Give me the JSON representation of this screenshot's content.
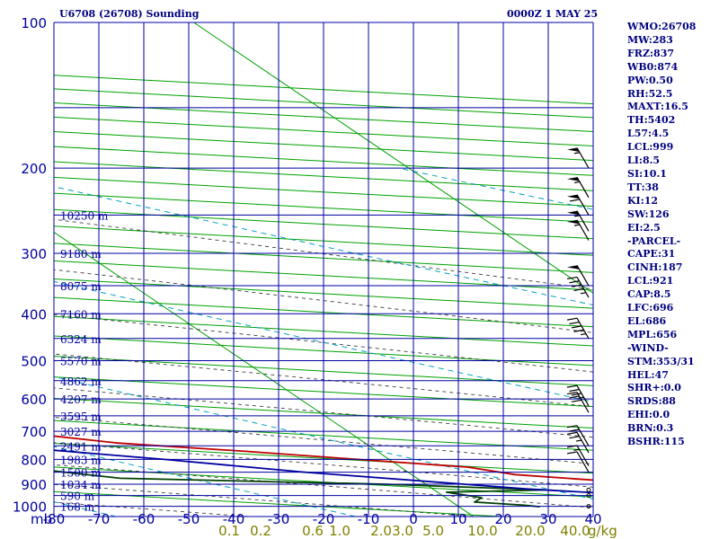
{
  "header": {
    "station": "U6708 (26708) Sounding",
    "time": "0000Z  1 MAY 25"
  },
  "indices": [
    "WMO:26708",
    "MW:283",
    "FRZ:837",
    "WB0:874",
    "PW:0.50",
    "RH:52.5",
    "MAXT:16.5",
    "TH:5402",
    "L57:4.5",
    "LCL:999",
    "LI:8.5",
    "SI:10.1",
    "TT:38",
    "KI:12",
    "SW:126",
    "EI:2.5",
    "-PARCEL-",
    "CAPE:31",
    "CINH:187",
    "LCL:921",
    "CAP:8.5",
    "LFC:696",
    "EL:686",
    "MPL:656",
    "-WIND-",
    "STM:353/31",
    "HEL:47",
    "SHR+:0.0",
    "SRDS:88",
    "EHI:0.0",
    "BRN:0.3",
    "BSHR:115"
  ],
  "chart_data": {
    "type": "line",
    "chart_kind": "skew-T log-P sounding diagram",
    "y_scale": "log",
    "ylim": [
      1050,
      100
    ],
    "xlim": [
      -80,
      0
    ],
    "pressure_labels": [
      "100",
      "200",
      "300",
      "400",
      "500",
      "600",
      "700",
      "800",
      "900",
      "1000"
    ],
    "pressure_values": [
      100,
      200,
      300,
      400,
      500,
      600,
      700,
      800,
      900,
      1000
    ],
    "x_axis_unit": "mb",
    "temperature_ticks": [
      "-80",
      "-70",
      "-60",
      "-50",
      "-40",
      "-30",
      "-20",
      "-10",
      "0",
      "10",
      "20",
      "30",
      "40"
    ],
    "mixing_ratio_labels": [
      "0.1",
      "0.2",
      "0.6",
      "1.0",
      "2.0",
      "3.0",
      "5.0",
      "10.0",
      "20.0",
      "40.0"
    ],
    "mixing_ratio_unit": "g/kg",
    "height_labels": [
      "10250 m",
      "9180 m",
      "8075 m",
      "7160 m",
      "6324 m",
      "5570 m",
      "4862 m",
      "4207 m",
      "3595 m",
      "3027 m",
      "2491 m",
      "1983 m",
      "1500 m",
      "1034 m",
      "590 m",
      "168 m"
    ],
    "height_pressures": [
      250,
      300,
      350,
      400,
      450,
      500,
      550,
      600,
      650,
      700,
      750,
      800,
      850,
      900,
      950,
      1000
    ],
    "series": [
      {
        "name": "",
        "role": "temperature",
        "color": "#c00000",
        "points": [
          [
            1002,
            5.5
          ],
          [
            995,
            5.6
          ],
          [
            980,
            7.5
          ],
          [
            960,
            9.0
          ],
          [
            925,
            7.8
          ],
          [
            900,
            5.0
          ],
          [
            860,
            2.3
          ],
          [
            830,
            1.5
          ],
          [
            800,
            -0.7
          ],
          [
            770,
            -2.9
          ],
          [
            740,
            -5.5
          ],
          [
            700,
            -7.5
          ],
          [
            672,
            -8.0
          ],
          [
            650,
            -8.8
          ],
          [
            600,
            -13.1
          ],
          [
            570,
            -15.3
          ],
          [
            550,
            -17.2
          ],
          [
            510,
            -20.8
          ],
          [
            500,
            -21.8
          ],
          [
            470,
            -26.0
          ],
          [
            430,
            -29.5
          ],
          [
            400,
            -33.0
          ],
          [
            350,
            -40.5
          ],
          [
            300,
            -48.0
          ],
          [
            250,
            -57.0
          ],
          [
            230,
            -56.5
          ],
          [
            220,
            -54.5
          ]
        ]
      },
      {
        "name": "",
        "role": "dewpoint",
        "color": "#004000",
        "points": [
          [
            1002,
            1.8
          ],
          [
            995,
            1.5
          ],
          [
            980,
            0.5
          ],
          [
            960,
            0.8
          ],
          [
            935,
            0.2
          ],
          [
            925,
            2.5
          ],
          [
            900,
            -1.0
          ],
          [
            875,
            -6.6
          ],
          [
            830,
            -8.5
          ],
          [
            800,
            -10.5
          ],
          [
            770,
            -12.5
          ],
          [
            740,
            -14.0
          ],
          [
            700,
            -15.3
          ],
          [
            680,
            -15.0
          ],
          [
            650,
            -19.4
          ],
          [
            600,
            -25.6
          ],
          [
            550,
            -33.0
          ],
          [
            500,
            -35.0
          ],
          [
            470,
            -38.5
          ],
          [
            430,
            -42.0
          ],
          [
            400,
            -43.5
          ],
          [
            350,
            -53.0
          ],
          [
            300,
            -63.0
          ],
          [
            250,
            -70.0
          ],
          [
            235,
            -69.0
          ],
          [
            220,
            -66.5
          ]
        ]
      },
      {
        "name": "",
        "role": "parcel",
        "color": "#0000a0",
        "points": [
          [
            1002,
            7.9
          ],
          [
            960,
            5.3
          ],
          [
            921,
            2.1
          ],
          [
            850,
            -2.3
          ],
          [
            800,
            -5.0
          ],
          [
            750,
            -8.2
          ],
          [
            700,
            -11.8
          ],
          [
            650,
            -16.0
          ],
          [
            600,
            -20.6
          ],
          [
            550,
            -25.8
          ],
          [
            500,
            -31.5
          ],
          [
            450,
            -38.0
          ],
          [
            400,
            -45.0
          ],
          [
            350,
            -53.5
          ],
          [
            300,
            -62.0
          ],
          [
            250,
            -72.0
          ]
        ]
      }
    ],
    "wind_barbs": [
      {
        "pressure": 200,
        "speed_kt": 55
      },
      {
        "pressure": 230,
        "speed_kt": 55
      },
      {
        "pressure": 250,
        "speed_kt": 60
      },
      {
        "pressure": 270,
        "speed_kt": 55
      },
      {
        "pressure": 282,
        "speed_kt": 55
      },
      {
        "pressure": 350,
        "speed_kt": 50
      },
      {
        "pressure": 370,
        "speed_kt": 45
      },
      {
        "pressure": 450,
        "speed_kt": 45
      },
      {
        "pressure": 620,
        "speed_kt": 35
      },
      {
        "pressure": 640,
        "speed_kt": 30
      },
      {
        "pressure": 750,
        "speed_kt": 20
      },
      {
        "pressure": 775,
        "speed_kt": 25
      },
      {
        "pressure": 825,
        "speed_kt": 15
      },
      {
        "pressure": 850,
        "speed_kt": 10
      },
      {
        "pressure": 925,
        "speed_kt": 0
      },
      {
        "pressure": 950,
        "speed_kt": 0
      },
      {
        "pressure": 1000,
        "speed_kt": 0
      }
    ],
    "colors": {
      "grid": "#0000a0",
      "isotherm": "#00a000",
      "dry_adiabat": "#00a000",
      "moist_adiabat": "#404040",
      "mixing_ratio": "#00a0c0",
      "label": "#0000a0",
      "mixing_label": "#808000",
      "header": "#000080"
    }
  }
}
